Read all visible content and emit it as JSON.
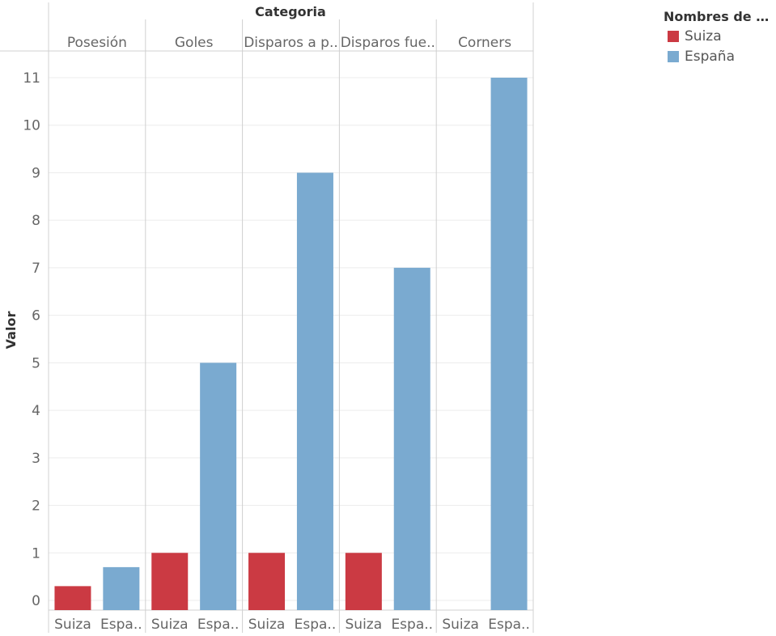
{
  "chart_data": {
    "type": "bar",
    "column_title": "Categoria",
    "ylabel": "Valor",
    "ylim": [
      0,
      11
    ],
    "yticks": [
      0,
      1,
      2,
      3,
      4,
      5,
      6,
      7,
      8,
      9,
      10,
      11
    ],
    "grid": true,
    "categories": [
      "Posesión",
      "Goles",
      "Disparos a p..",
      "Disparos fue..",
      "Corners"
    ],
    "sub_categories": [
      "Suiza",
      "Espa.."
    ],
    "series": [
      {
        "name": "Suiza",
        "color": "#cb3a43",
        "values": [
          0.3,
          1,
          1,
          1,
          0
        ]
      },
      {
        "name": "España",
        "color": "#7aaad0",
        "values": [
          0.7,
          5,
          9,
          7,
          11
        ]
      }
    ],
    "legend": {
      "title": "Nombres de me..",
      "position": "top-right"
    }
  }
}
